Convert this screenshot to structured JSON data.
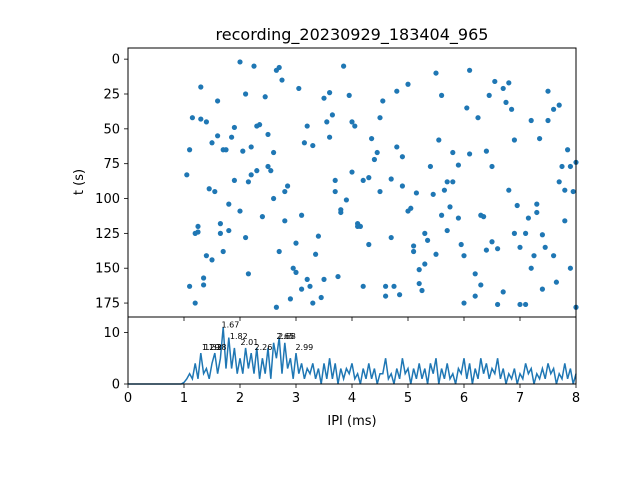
{
  "colors": {
    "series": "#1f77b4",
    "axis": "#000000",
    "background": "#ffffff"
  },
  "chart_data": [
    {
      "type": "scatter",
      "title": "recording_20230929_183404_965",
      "xlabel": "",
      "ylabel": "t (s)",
      "xlim": [
        0,
        8
      ],
      "ylim": [
        185,
        -8
      ],
      "y_inverted": true,
      "yticks": [
        0,
        25,
        50,
        75,
        100,
        125,
        150,
        175
      ],
      "ytick_labels": [
        "0",
        "25",
        "50",
        "75",
        "100",
        "125",
        "150",
        "175"
      ],
      "marker": "circle",
      "points_x": [
        1.05,
        1.1,
        1.2,
        1.25,
        1.3,
        1.35,
        1.4,
        1.5,
        1.55,
        1.6,
        1.65,
        1.7,
        1.8,
        1.9,
        2.0,
        2.05,
        2.1,
        2.2,
        2.3,
        2.4,
        2.5,
        2.55,
        2.6,
        2.7,
        2.8,
        2.9,
        3.0,
        3.1,
        3.2,
        3.3,
        3.4,
        3.5,
        3.6,
        3.7,
        3.8,
        3.9,
        4.0,
        4.1,
        4.2,
        4.3,
        4.5,
        4.6,
        4.7,
        4.8,
        4.9,
        5.0,
        5.1,
        5.2,
        5.3,
        5.4,
        5.5,
        5.6,
        5.7,
        5.8,
        5.9,
        6.0,
        6.1,
        6.2,
        6.3,
        6.4,
        6.5,
        6.6,
        6.7,
        6.8,
        6.9,
        7.0,
        7.1,
        7.2,
        7.3,
        7.4,
        7.5,
        7.6,
        7.7,
        7.8,
        7.9,
        8.0,
        1.15,
        1.45,
        1.75,
        2.15,
        2.35,
        2.65,
        2.95,
        3.25,
        3.55,
        3.85,
        4.15,
        4.45,
        4.75,
        5.05,
        5.35,
        5.65,
        5.95,
        6.25,
        6.55,
        6.85,
        7.15,
        7.45,
        7.75,
        7.95,
        1.3,
        1.8,
        2.25,
        2.75,
        3.15,
        3.65,
        4.05,
        4.55,
        5.15,
        5.55,
        6.05,
        6.45,
        6.95,
        7.35,
        7.85,
        1.1,
        1.6,
        2.1,
        2.6,
        3.1,
        3.6,
        4.1,
        4.6,
        5.1,
        5.6,
        6.1,
        6.6,
        7.1,
        7.6,
        1.4,
        1.9,
        2.45,
        2.85,
        3.35,
        3.75,
        4.35,
        4.85,
        5.25,
        5.75,
        6.35,
        6.75,
        7.25,
        7.65,
        1.25,
        1.7,
        2.2,
        2.7,
        3.2,
        3.7,
        4.2,
        4.7,
        5.2,
        5.7,
        6.2,
        6.7,
        7.2,
        7.7,
        1.5,
        2.0,
        2.5,
        3.0,
        3.5,
        4.0,
        4.5,
        5.0,
        5.5,
        6.0,
        6.5,
        7.0,
        7.5,
        8.0,
        1.35,
        1.85,
        2.3,
        2.8,
        3.3,
        3.8,
        4.3,
        4.8,
        5.3,
        5.8,
        6.3,
        6.8,
        7.3,
        7.8,
        1.2,
        1.65,
        2.15,
        2.65,
        3.05,
        3.45,
        3.95,
        4.4,
        4.9,
        5.45,
        5.9,
        6.4,
        6.9,
        7.4,
        7.9
      ],
      "points_y": [
        83,
        65,
        175,
        120,
        43,
        162,
        45,
        60,
        95,
        30,
        118,
        65,
        123,
        87,
        2,
        66,
        128,
        63,
        80,
        113,
        77,
        80,
        67,
        6,
        116,
        172,
        153,
        165,
        48,
        175,
        127,
        28,
        56,
        87,
        110,
        101,
        45,
        118,
        87,
        85,
        42,
        163,
        86,
        23,
        70,
        18,
        138,
        151,
        125,
        77,
        140,
        26,
        123,
        67,
        114,
        141,
        8,
        170,
        112,
        137,
        131,
        176,
        21,
        94,
        125,
        135,
        176,
        44,
        110,
        165,
        23,
        141,
        33,
        116,
        150,
        178,
        42,
        93,
        65,
        88,
        47,
        8,
        150,
        163,
        45,
        5,
        120,
        67,
        163,
        107,
        130,
        94,
        133,
        42,
        16,
        36,
        114,
        135,
        77,
        95,
        20,
        104,
        5,
        15,
        60,
        40,
        48,
        30,
        96,
        58,
        35,
        26,
        105,
        57,
        65,
        163,
        55,
        25,
        100,
        112,
        24,
        120,
        170,
        134,
        112,
        68,
        136,
        125,
        36,
        141,
        49,
        27,
        91,
        140,
        156,
        57,
        169,
        166,
        106,
        113,
        31,
        141,
        160,
        124,
        138,
        83,
        138,
        158,
        95,
        163,
        128,
        161,
        88,
        154,
        167,
        150,
        88,
        144,
        109,
        54,
        132,
        158,
        81,
        95,
        109,
        10,
        175,
        77,
        176,
        44,
        74,
        157,
        56,
        48,
        95,
        62,
        108,
        133,
        63,
        147,
        88,
        162,
        17,
        104,
        94,
        125,
        125,
        154,
        178,
        21,
        171,
        26,
        72,
        91,
        97,
        76,
        66,
        58,
        126,
        77,
        44,
        175,
        133,
        70,
        95,
        21,
        172,
        162,
        102
      ],
      "xticks": [
        0,
        1,
        2,
        3,
        4,
        5,
        6,
        7,
        8
      ],
      "xtick_labels": [
        "",
        "",
        "",
        "",
        "",
        "",
        "",
        "",
        ""
      ]
    },
    {
      "type": "line",
      "xlabel": "IPI (ms)",
      "ylabel": "",
      "xlim": [
        0,
        8
      ],
      "ylim": [
        0,
        13
      ],
      "xticks": [
        0,
        1,
        2,
        3,
        4,
        5,
        6,
        7,
        8
      ],
      "xtick_labels": [
        "0",
        "1",
        "2",
        "3",
        "4",
        "5",
        "6",
        "7",
        "8"
      ],
      "yticks": [
        0,
        10
      ],
      "ytick_labels": [
        "0",
        "10"
      ],
      "x": [
        0,
        0.95,
        1.0,
        1.05,
        1.1,
        1.15,
        1.2,
        1.25,
        1.3,
        1.35,
        1.4,
        1.45,
        1.5,
        1.55,
        1.6,
        1.65,
        1.7,
        1.75,
        1.8,
        1.85,
        1.9,
        1.95,
        2.0,
        2.05,
        2.1,
        2.15,
        2.2,
        2.25,
        2.3,
        2.35,
        2.4,
        2.45,
        2.5,
        2.55,
        2.6,
        2.65,
        2.7,
        2.75,
        2.8,
        2.85,
        2.9,
        2.95,
        3.0,
        3.05,
        3.1,
        3.15,
        3.2,
        3.25,
        3.3,
        3.35,
        3.4,
        3.45,
        3.5,
        3.55,
        3.6,
        3.65,
        3.7,
        3.75,
        3.8,
        3.85,
        3.9,
        3.95,
        4.0,
        4.05,
        4.1,
        4.15,
        4.2,
        4.25,
        4.3,
        4.35,
        4.4,
        4.45,
        4.5,
        4.55,
        4.6,
        4.65,
        4.7,
        4.75,
        4.8,
        4.85,
        4.9,
        4.95,
        5.0,
        5.05,
        5.1,
        5.15,
        5.2,
        5.25,
        5.3,
        5.35,
        5.4,
        5.45,
        5.5,
        5.55,
        5.6,
        5.65,
        5.7,
        5.75,
        5.8,
        5.85,
        5.9,
        5.95,
        6.0,
        6.05,
        6.1,
        6.15,
        6.2,
        6.25,
        6.3,
        6.35,
        6.4,
        6.45,
        6.5,
        6.55,
        6.6,
        6.65,
        6.7,
        6.75,
        6.8,
        6.85,
        6.9,
        6.95,
        7.0,
        7.05,
        7.1,
        7.15,
        7.2,
        7.25,
        7.3,
        7.35,
        7.4,
        7.45,
        7.5,
        7.55,
        7.6,
        7.65,
        7.7,
        7.75,
        7.8,
        7.85,
        7.9,
        7.95,
        8.0
      ],
      "y": [
        0,
        0,
        0.3,
        1,
        2,
        1,
        4,
        1,
        6,
        2,
        3,
        1,
        4,
        6,
        2,
        5,
        11,
        3,
        9,
        3,
        7,
        2,
        5,
        2,
        7,
        3,
        6,
        2,
        7,
        1,
        5,
        2,
        7,
        1,
        8,
        5,
        9,
        2,
        8,
        3,
        5,
        1,
        6,
        2,
        4,
        1,
        3,
        2,
        4,
        1,
        3,
        0,
        4,
        1,
        5,
        1,
        4,
        0,
        3,
        1,
        3,
        2,
        4,
        1,
        2,
        0,
        3,
        1,
        4,
        1,
        3,
        0,
        2,
        2,
        5,
        1,
        2,
        0,
        3,
        1,
        5,
        2,
        3,
        0,
        3,
        1,
        4,
        1,
        3,
        0,
        4,
        2,
        5,
        0,
        3,
        1,
        4,
        1,
        2,
        0,
        3,
        2,
        5,
        1,
        4,
        0,
        3,
        1,
        5,
        2,
        4,
        1,
        3,
        2,
        5,
        1,
        3,
        0,
        2,
        1,
        3,
        0,
        2,
        1,
        4,
        2,
        3,
        0,
        2,
        1,
        3,
        1,
        4,
        2,
        3,
        0,
        2,
        1,
        4,
        1,
        3,
        0,
        2
      ],
      "annotations": [
        {
          "x": 1.32,
          "y": 6.6,
          "text": "1.29"
        },
        {
          "x": 1.36,
          "y": 6.6,
          "text": "1.32"
        },
        {
          "x": 1.44,
          "y": 6.6,
          "text": "1.38"
        },
        {
          "x": 1.67,
          "y": 11.0,
          "text": "1.67"
        },
        {
          "x": 1.82,
          "y": 8.7,
          "text": "1.82"
        },
        {
          "x": 2.01,
          "y": 7.6,
          "text": "2.01"
        },
        {
          "x": 2.26,
          "y": 6.6,
          "text": "2.26"
        },
        {
          "x": 2.65,
          "y": 8.7,
          "text": "2.65"
        },
        {
          "x": 2.68,
          "y": 8.7,
          "text": "2.68"
        },
        {
          "x": 2.99,
          "y": 6.6,
          "text": "2.99"
        }
      ]
    }
  ]
}
